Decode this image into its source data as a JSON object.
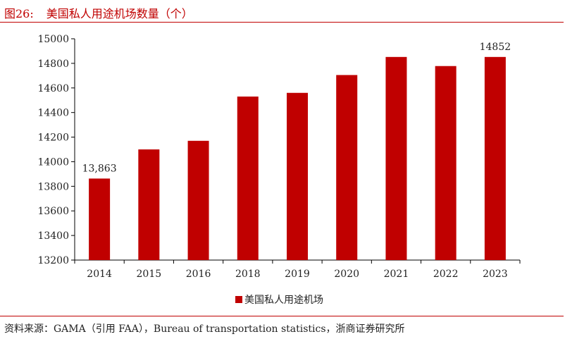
{
  "figure_label": "图26:",
  "title": "美国私人用途机场数量（个）",
  "source_text": "资料来源：GAMA（引用 FAA），Bureau of transportation statistics，浙商证券研究所",
  "colors": {
    "accent": "#c00000",
    "bar": "#c00000",
    "text": "#222222"
  },
  "chart_data": {
    "type": "bar",
    "categories": [
      "2014",
      "2015",
      "2016",
      "2018",
      "2019",
      "2020",
      "2021",
      "2022",
      "2023"
    ],
    "series": [
      {
        "name": "美国私人用途机场",
        "values": [
          13863,
          14100,
          14170,
          14530,
          14560,
          14705,
          14852,
          14778,
          14852
        ]
      }
    ],
    "ylim": [
      13200,
      15000
    ],
    "yticks": [
      "13200",
      "13400",
      "13600",
      "13800",
      "14000",
      "14200",
      "14400",
      "14600",
      "14800",
      "15000"
    ],
    "data_labels": [
      {
        "category": "2014",
        "text": "13,863"
      },
      {
        "category": "2023",
        "text": "14852"
      }
    ],
    "legend_position": "bottom",
    "grid": false
  }
}
